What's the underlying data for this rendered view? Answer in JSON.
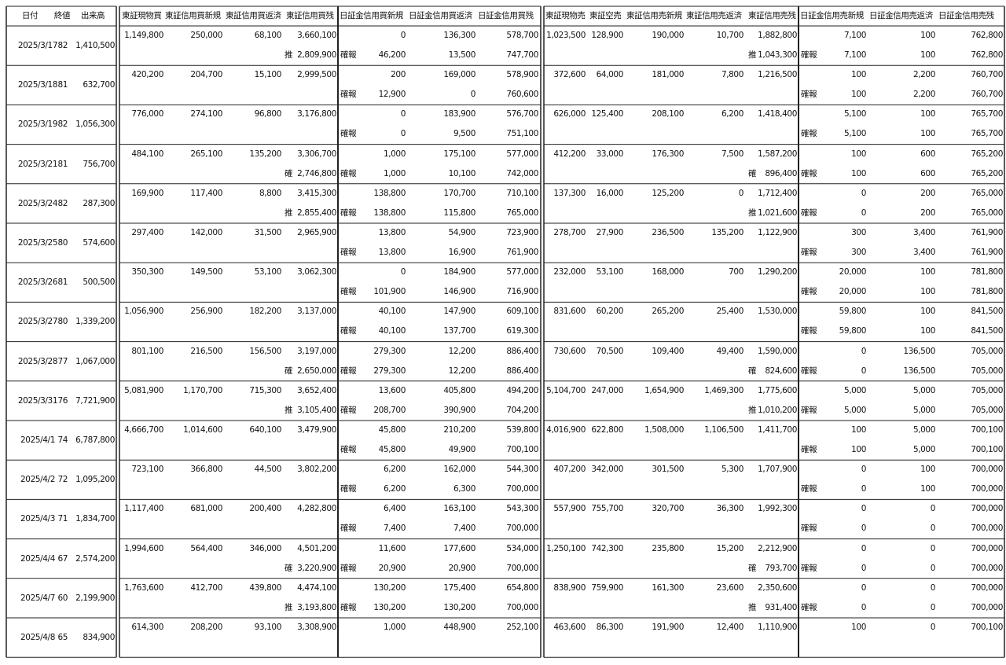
{
  "headers": {
    "left": [
      "日付",
      "終値",
      "出来高"
    ],
    "tb": [
      "東証現物買",
      "東証信用買新規",
      "東証信用買返済",
      "東証信用買残"
    ],
    "jb": [
      "日証金信用買新規",
      "日証金信用買返済",
      "日証金信用買残"
    ],
    "ts": [
      "東証現物売",
      "東証空売",
      "東証信用売新規",
      "東証信用売返済",
      "東証信用売残"
    ],
    "js": [
      "日証金信用売新規",
      "日証金信用売返済",
      "日証金信用売残"
    ]
  },
  "rows": [
    {
      "date": "2025/3/17",
      "close": "82",
      "volume": "1,410,500",
      "top": {
        "tb": [
          "1,149,800",
          "250,000",
          "68,100",
          "3,660,100"
        ],
        "jb": [
          "0",
          "136,300",
          "578,700"
        ],
        "ts": [
          "1,023,500",
          "128,900",
          "190,000",
          "10,700",
          "1,882,800"
        ],
        "js": [
          "7,100",
          "100",
          "762,800"
        ]
      },
      "bottom": {
        "tb_note": "推",
        "tb_zan": "2,809,900",
        "jb_note": "確報",
        "jb": [
          "46,200",
          "13,500",
          "747,700"
        ],
        "ts_note": "推",
        "ts_zan": "1,043,300",
        "js_note": "確報",
        "js": [
          "7,100",
          "100",
          "762,800"
        ]
      }
    },
    {
      "date": "2025/3/18",
      "close": "81",
      "volume": "632,700",
      "top": {
        "tb": [
          "420,200",
          "204,700",
          "15,100",
          "2,999,500"
        ],
        "jb": [
          "200",
          "169,000",
          "578,900"
        ],
        "ts": [
          "372,600",
          "64,000",
          "181,000",
          "7,800",
          "1,216,500"
        ],
        "js": [
          "100",
          "2,200",
          "760,700"
        ]
      },
      "bottom": {
        "jb_note": "確報",
        "jb": [
          "12,900",
          "0",
          "760,600"
        ],
        "js_note": "確報",
        "js": [
          "100",
          "2,200",
          "760,700"
        ]
      }
    },
    {
      "date": "2025/3/19",
      "close": "82",
      "volume": "1,056,300",
      "top": {
        "tb": [
          "776,000",
          "274,100",
          "96,800",
          "3,176,800"
        ],
        "jb": [
          "0",
          "183,900",
          "576,700"
        ],
        "ts": [
          "626,000",
          "125,400",
          "208,100",
          "6,200",
          "1,418,400"
        ],
        "js": [
          "5,100",
          "100",
          "765,700"
        ]
      },
      "bottom": {
        "jb_note": "確報",
        "jb": [
          "0",
          "9,500",
          "751,100"
        ],
        "js_note": "確報",
        "js": [
          "5,100",
          "100",
          "765,700"
        ]
      }
    },
    {
      "date": "2025/3/21",
      "close": "81",
      "volume": "756,700",
      "top": {
        "tb": [
          "484,100",
          "265,100",
          "135,200",
          "3,306,700"
        ],
        "jb": [
          "1,000",
          "175,100",
          "577,000"
        ],
        "ts": [
          "412,200",
          "33,000",
          "176,300",
          "7,500",
          "1,587,200"
        ],
        "js": [
          "100",
          "600",
          "765,200"
        ]
      },
      "bottom": {
        "tb_note": "確",
        "tb_zan": "2,746,800",
        "jb_note": "確報",
        "jb": [
          "1,000",
          "10,100",
          "742,000"
        ],
        "ts_note": "確",
        "ts_zan": "896,400",
        "js_note": "確報",
        "js": [
          "100",
          "600",
          "765,200"
        ]
      }
    },
    {
      "date": "2025/3/24",
      "close": "82",
      "volume": "287,300",
      "top": {
        "tb": [
          "169,900",
          "117,400",
          "8,800",
          "3,415,300"
        ],
        "jb": [
          "138,800",
          "170,700",
          "710,100"
        ],
        "ts": [
          "137,300",
          "16,000",
          "125,200",
          "0",
          "1,712,400"
        ],
        "js": [
          "0",
          "200",
          "765,000"
        ]
      },
      "bottom": {
        "tb_note": "推",
        "tb_zan": "2,855,400",
        "jb_note": "確報",
        "jb": [
          "138,800",
          "115,800",
          "765,000"
        ],
        "ts_note": "推",
        "ts_zan": "1,021,600",
        "js_note": "確報",
        "js": [
          "0",
          "200",
          "765,000"
        ]
      }
    },
    {
      "date": "2025/3/25",
      "close": "80",
      "volume": "574,600",
      "top": {
        "tb": [
          "297,400",
          "142,000",
          "31,500",
          "2,965,900"
        ],
        "jb": [
          "13,800",
          "54,900",
          "723,900"
        ],
        "ts": [
          "278,700",
          "27,900",
          "236,500",
          "135,200",
          "1,122,900"
        ],
        "js": [
          "300",
          "3,400",
          "761,900"
        ]
      },
      "bottom": {
        "jb_note": "確報",
        "jb": [
          "13,800",
          "16,900",
          "761,900"
        ],
        "js_note": "確報",
        "js": [
          "300",
          "3,400",
          "761,900"
        ]
      }
    },
    {
      "date": "2025/3/26",
      "close": "81",
      "volume": "500,500",
      "top": {
        "tb": [
          "350,300",
          "149,500",
          "53,100",
          "3,062,300"
        ],
        "jb": [
          "0",
          "184,900",
          "577,000"
        ],
        "ts": [
          "232,000",
          "53,100",
          "168,000",
          "700",
          "1,290,200"
        ],
        "js": [
          "20,000",
          "100",
          "781,800"
        ]
      },
      "bottom": {
        "jb_note": "確報",
        "jb": [
          "101,900",
          "146,900",
          "716,900"
        ],
        "js_note": "確報",
        "js": [
          "20,000",
          "100",
          "781,800"
        ]
      }
    },
    {
      "date": "2025/3/27",
      "close": "80",
      "volume": "1,339,200",
      "top": {
        "tb": [
          "1,056,900",
          "256,900",
          "182,200",
          "3,137,000"
        ],
        "jb": [
          "40,100",
          "147,900",
          "609,100"
        ],
        "ts": [
          "831,600",
          "60,200",
          "265,200",
          "25,400",
          "1,530,000"
        ],
        "js": [
          "59,800",
          "100",
          "841,500"
        ]
      },
      "bottom": {
        "jb_note": "確報",
        "jb": [
          "40,100",
          "137,700",
          "619,300"
        ],
        "js_note": "確報",
        "js": [
          "59,800",
          "100",
          "841,500"
        ]
      }
    },
    {
      "date": "2025/3/28",
      "close": "77",
      "volume": "1,067,000",
      "top": {
        "tb": [
          "801,100",
          "216,500",
          "156,500",
          "3,197,000"
        ],
        "jb": [
          "279,300",
          "12,200",
          "886,400"
        ],
        "ts": [
          "730,600",
          "70,500",
          "109,400",
          "49,400",
          "1,590,000"
        ],
        "js": [
          "0",
          "136,500",
          "705,000"
        ]
      },
      "bottom": {
        "tb_note": "確",
        "tb_zan": "2,650,000",
        "jb_note": "確報",
        "jb": [
          "279,300",
          "12,200",
          "886,400"
        ],
        "ts_note": "確",
        "ts_zan": "824,600",
        "js_note": "確報",
        "js": [
          "0",
          "136,500",
          "705,000"
        ]
      }
    },
    {
      "date": "2025/3/31",
      "close": "76",
      "volume": "7,721,900",
      "top": {
        "tb": [
          "5,081,900",
          "1,170,700",
          "715,300",
          "3,652,400"
        ],
        "jb": [
          "13,600",
          "405,800",
          "494,200"
        ],
        "ts": [
          "5,104,700",
          "247,000",
          "1,654,900",
          "1,469,300",
          "1,775,600"
        ],
        "js": [
          "5,000",
          "5,000",
          "705,000"
        ]
      },
      "bottom": {
        "tb_note": "推",
        "tb_zan": "3,105,400",
        "jb_note": "確報",
        "jb": [
          "208,700",
          "390,900",
          "704,200"
        ],
        "ts_note": "推",
        "ts_zan": "1,010,200",
        "js_note": "確報",
        "js": [
          "5,000",
          "5,000",
          "705,000"
        ]
      }
    },
    {
      "date": "2025/4/1",
      "close": "74",
      "volume": "6,787,800",
      "top": {
        "tb": [
          "4,666,700",
          "1,014,600",
          "640,100",
          "3,479,900"
        ],
        "jb": [
          "45,800",
          "210,200",
          "539,800"
        ],
        "ts": [
          "4,016,900",
          "622,800",
          "1,508,000",
          "1,106,500",
          "1,411,700"
        ],
        "js": [
          "100",
          "5,000",
          "700,100"
        ]
      },
      "bottom": {
        "jb_note": "確報",
        "jb": [
          "45,800",
          "49,900",
          "700,100"
        ],
        "js_note": "確報",
        "js": [
          "100",
          "5,000",
          "700,100"
        ]
      }
    },
    {
      "date": "2025/4/2",
      "close": "72",
      "volume": "1,095,200",
      "top": {
        "tb": [
          "723,100",
          "366,800",
          "44,500",
          "3,802,200"
        ],
        "jb": [
          "6,200",
          "162,000",
          "544,300"
        ],
        "ts": [
          "407,200",
          "342,000",
          "301,500",
          "5,300",
          "1,707,900"
        ],
        "js": [
          "0",
          "100",
          "700,000"
        ]
      },
      "bottom": {
        "jb_note": "確報",
        "jb": [
          "6,200",
          "6,300",
          "700,000"
        ],
        "js_note": "確報",
        "js": [
          "0",
          "100",
          "700,000"
        ]
      }
    },
    {
      "date": "2025/4/3",
      "close": "71",
      "volume": "1,834,700",
      "top": {
        "tb": [
          "1,117,400",
          "681,000",
          "200,400",
          "4,282,800"
        ],
        "jb": [
          "6,400",
          "163,100",
          "543,300"
        ],
        "ts": [
          "557,900",
          "755,700",
          "320,700",
          "36,300",
          "1,992,300"
        ],
        "js": [
          "0",
          "0",
          "700,000"
        ]
      },
      "bottom": {
        "jb_note": "確報",
        "jb": [
          "7,400",
          "7,400",
          "700,000"
        ],
        "js_note": "確報",
        "js": [
          "0",
          "0",
          "700,000"
        ]
      }
    },
    {
      "date": "2025/4/4",
      "close": "67",
      "volume": "2,574,200",
      "top": {
        "tb": [
          "1,994,600",
          "564,400",
          "346,000",
          "4,501,200"
        ],
        "jb": [
          "11,600",
          "177,600",
          "534,000"
        ],
        "ts": [
          "1,250,100",
          "742,300",
          "235,800",
          "15,200",
          "2,212,900"
        ],
        "js": [
          "0",
          "0",
          "700,000"
        ]
      },
      "bottom": {
        "tb_note": "確",
        "tb_zan": "3,220,900",
        "jb_note": "確報",
        "jb": [
          "20,900",
          "20,900",
          "700,000"
        ],
        "ts_note": "確",
        "ts_zan": "793,700",
        "js_note": "確報",
        "js": [
          "0",
          "0",
          "700,000"
        ]
      }
    },
    {
      "date": "2025/4/7",
      "close": "60",
      "volume": "2,199,900",
      "top": {
        "tb": [
          "1,763,600",
          "412,700",
          "439,800",
          "4,474,100"
        ],
        "jb": [
          "130,200",
          "175,400",
          "654,800"
        ],
        "ts": [
          "838,900",
          "759,900",
          "161,300",
          "23,600",
          "2,350,600"
        ],
        "js": [
          "0",
          "0",
          "700,000"
        ]
      },
      "bottom": {
        "tb_note": "推",
        "tb_zan": "3,193,800",
        "jb_note": "確報",
        "jb": [
          "130,200",
          "130,200",
          "700,000"
        ],
        "ts_note": "推",
        "ts_zan": "931,400",
        "js_note": "確報",
        "js": [
          "0",
          "0",
          "700,000"
        ]
      }
    },
    {
      "date": "2025/4/8",
      "close": "65",
      "volume": "834,900",
      "top": {
        "tb": [
          "614,300",
          "208,200",
          "93,100",
          "3,308,900"
        ],
        "jb": [
          "1,000",
          "448,900",
          "252,100"
        ],
        "ts": [
          "463,600",
          "86,300",
          "191,900",
          "12,400",
          "1,110,900"
        ],
        "js": [
          "100",
          "0",
          "700,100"
        ]
      },
      "bottom": {}
    }
  ]
}
